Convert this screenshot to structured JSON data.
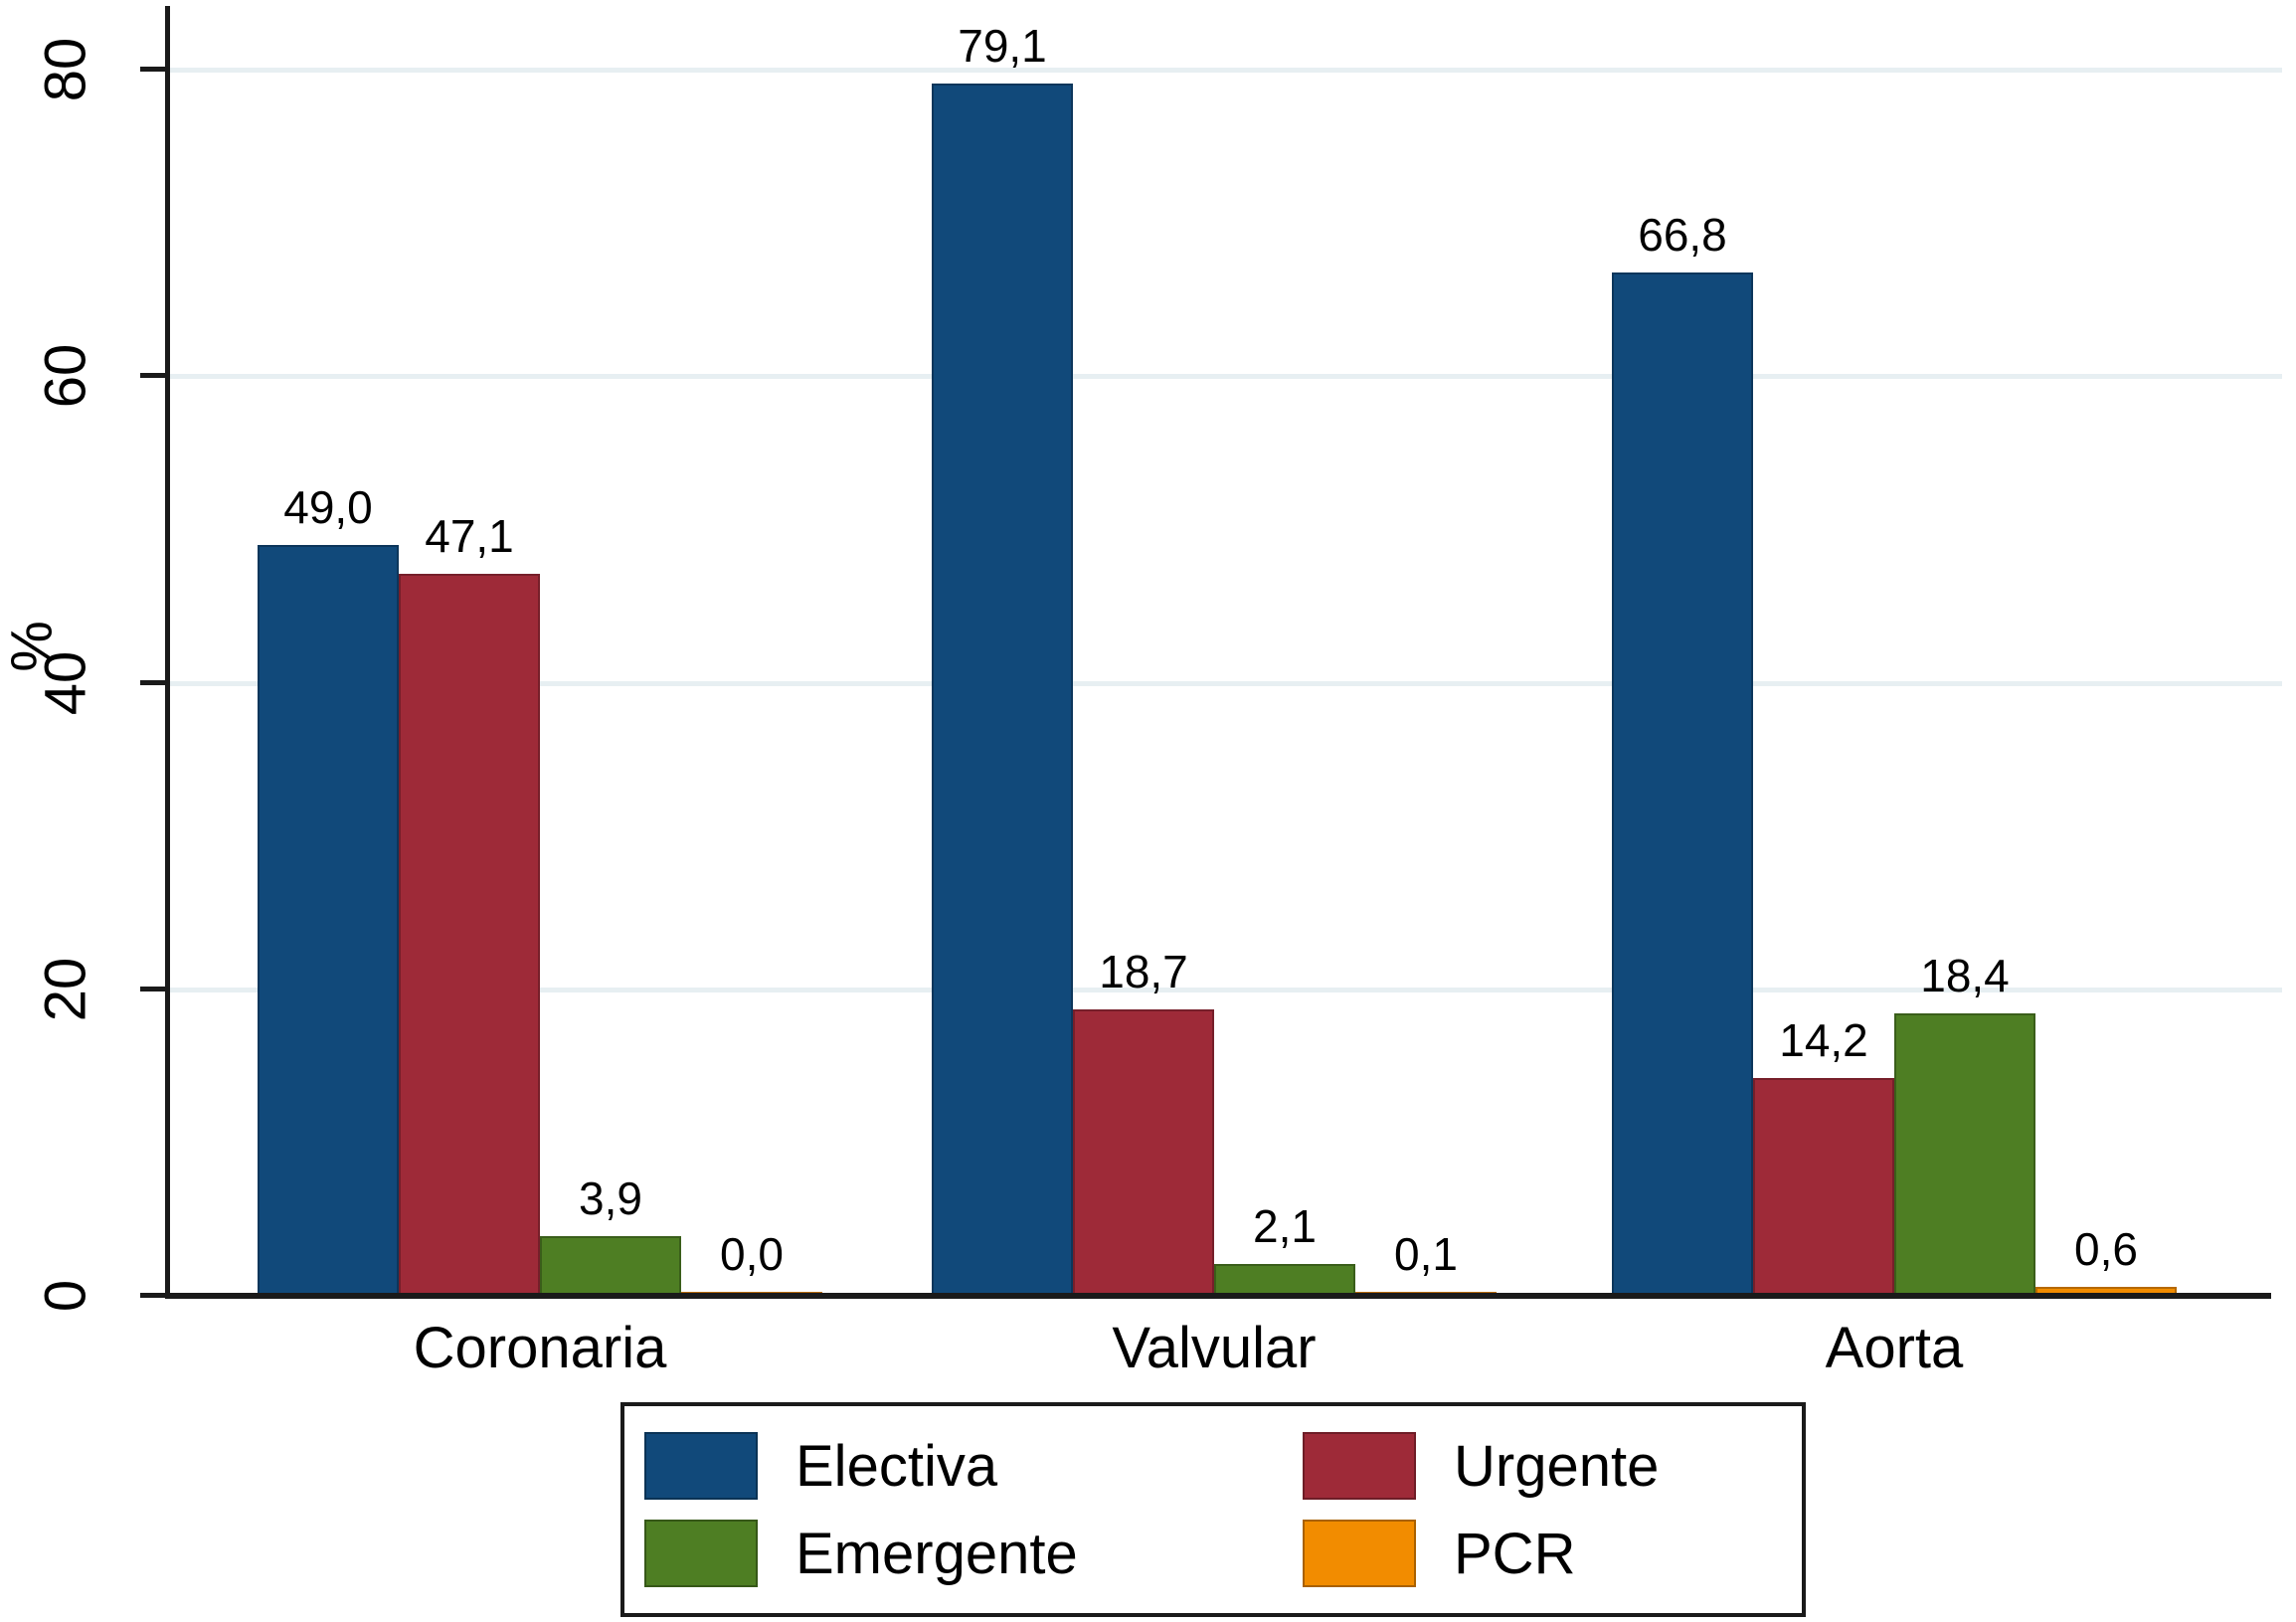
{
  "figure": {
    "background": "#ffffff",
    "text_color": "#000000"
  },
  "chart_data": {
    "type": "bar",
    "title": "",
    "xlabel": "",
    "ylabel": "%",
    "categories": [
      "Coronaria",
      "Valvular",
      "Aorta"
    ],
    "series": [
      {
        "name": "Electiva",
        "color": "#11497a",
        "values": [
          49.0,
          79.1,
          66.8
        ],
        "labels": [
          "49,0",
          "79,1",
          "66,8"
        ]
      },
      {
        "name": "Urgente",
        "color": "#9e2a38",
        "values": [
          47.1,
          18.7,
          14.2
        ],
        "labels": [
          "47,1",
          "18,7",
          "14,2"
        ]
      },
      {
        "name": "Emergente",
        "color": "#4e7e23",
        "values": [
          3.9,
          2.1,
          18.4
        ],
        "labels": [
          "3,9",
          "2,1",
          "18,4"
        ]
      },
      {
        "name": "PCR",
        "color": "#f28c00",
        "values": [
          0.0,
          0.1,
          0.6
        ],
        "labels": [
          "0,0",
          "0,1",
          "0,6"
        ]
      }
    ],
    "yticks": [
      0,
      20,
      40,
      60,
      80
    ],
    "ytick_labels": [
      "0",
      "20",
      "40",
      "60",
      "80"
    ],
    "ylim": [
      0,
      84
    ],
    "grid": true,
    "gridline_color": "#e7eff2",
    "axis_color": "#1a1a1a",
    "legend_position": "bottom",
    "decimal_separator": ","
  }
}
